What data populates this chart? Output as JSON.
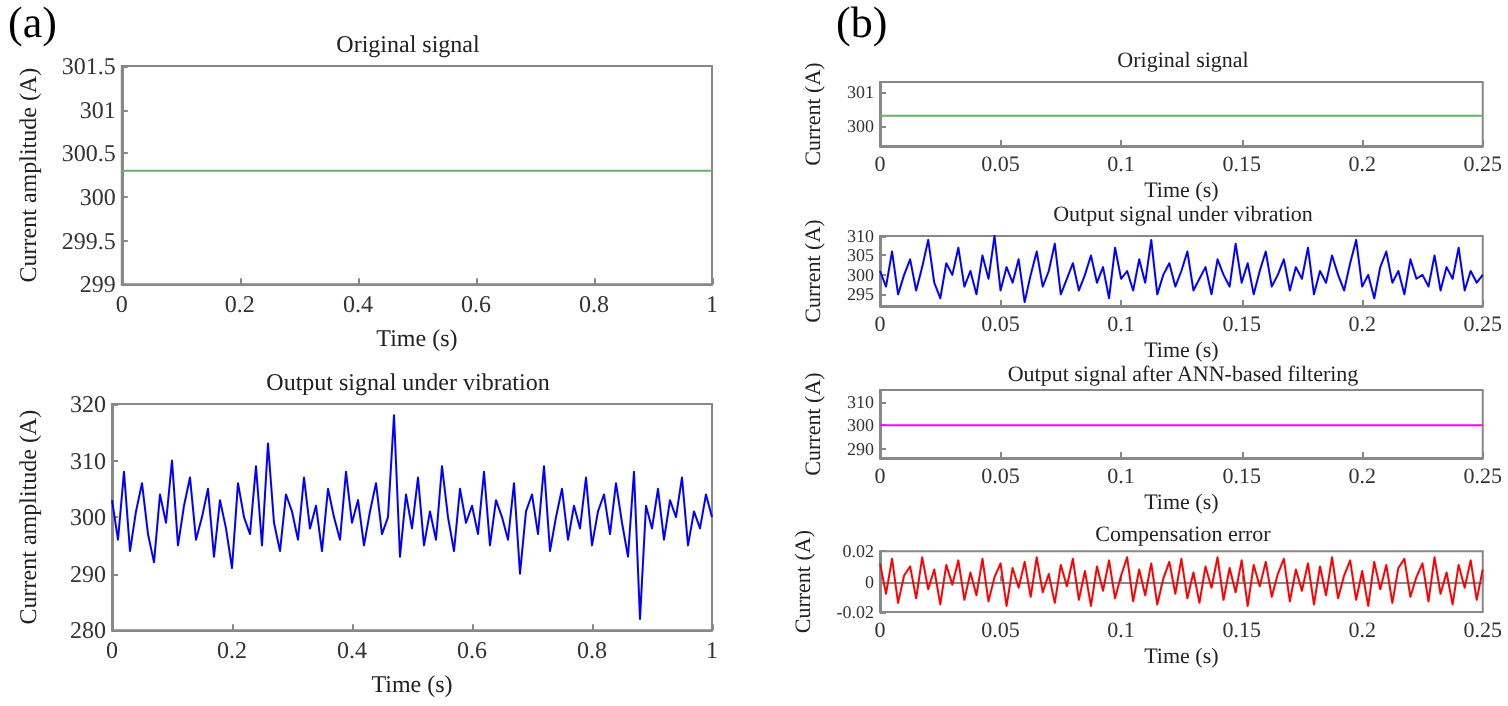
{
  "chart_data": [
    {
      "type": "line",
      "title": "Original signal",
      "xlabel": "Time (s)",
      "ylabel": "Current amplitude (A)",
      "annotations": [
        "(a)"
      ],
      "x": [
        0,
        1
      ],
      "values": [
        300.3,
        300.3
      ],
      "color": "#66b266",
      "xlim": [
        0,
        1
      ],
      "xticks": [
        0,
        0.2,
        0.4,
        0.6,
        0.8,
        1
      ],
      "ylim": [
        299,
        301.5
      ],
      "yticks": [
        299,
        299.5,
        300,
        300.5,
        301,
        301.5
      ]
    },
    {
      "type": "line",
      "title": "Output signal under vibration",
      "xlabel": "Time (s)",
      "ylabel": "Current amplitude (A)",
      "color": "#0000ff",
      "xlim": [
        0,
        1
      ],
      "xticks": [
        0,
        0.2,
        0.4,
        0.6,
        0.8,
        1
      ],
      "ylim": [
        280,
        320
      ],
      "yticks": [
        280,
        290,
        300,
        310,
        320
      ],
      "x": [
        0,
        0.01,
        0.02,
        0.03,
        0.04,
        0.05,
        0.06,
        0.07,
        0.08,
        0.09,
        0.1,
        0.11,
        0.12,
        0.13,
        0.14,
        0.15,
        0.16,
        0.17,
        0.18,
        0.19,
        0.2,
        0.21,
        0.22,
        0.23,
        0.24,
        0.25,
        0.26,
        0.27,
        0.28,
        0.29,
        0.3,
        0.31,
        0.32,
        0.33,
        0.34,
        0.35,
        0.36,
        0.37,
        0.38,
        0.39,
        0.4,
        0.41,
        0.42,
        0.43,
        0.44,
        0.45,
        0.46,
        0.47,
        0.48,
        0.49,
        0.5,
        0.51,
        0.52,
        0.53,
        0.54,
        0.55,
        0.56,
        0.57,
        0.58,
        0.59,
        0.6,
        0.61,
        0.62,
        0.63,
        0.64,
        0.65,
        0.66,
        0.67,
        0.68,
        0.69,
        0.7,
        0.71,
        0.72,
        0.73,
        0.74,
        0.75,
        0.76,
        0.77,
        0.78,
        0.79,
        0.8,
        0.81,
        0.82,
        0.83,
        0.84,
        0.85,
        0.86,
        0.87,
        0.88,
        0.89,
        0.9,
        0.91,
        0.92,
        0.93,
        0.94,
        0.95,
        0.96,
        0.97,
        0.98,
        0.99,
        1
      ],
      "values": [
        303,
        296,
        308,
        294,
        301,
        306,
        297,
        292,
        304,
        299,
        310,
        295,
        302,
        307,
        296,
        300,
        305,
        293,
        303,
        298,
        291,
        306,
        300,
        297,
        309,
        295,
        313,
        299,
        294,
        304,
        301,
        296,
        307,
        298,
        302,
        294,
        305,
        300,
        296,
        308,
        299,
        303,
        295,
        301,
        306,
        297,
        300,
        318,
        293,
        304,
        298,
        307,
        295,
        301,
        296,
        309,
        300,
        294,
        305,
        299,
        302,
        297,
        308,
        295,
        303,
        300,
        296,
        306,
        290,
        301,
        304,
        297,
        309,
        294,
        300,
        305,
        296,
        302,
        298,
        307,
        295,
        301,
        304,
        297,
        306,
        299,
        293,
        308,
        282,
        302,
        298,
        305,
        296,
        303,
        300,
        307,
        295,
        301,
        298,
        304,
        300
      ]
    },
    {
      "type": "line",
      "title": "Original signal",
      "xlabel": "Time (s)",
      "ylabel": "Current (A)",
      "annotations": [
        "(b)"
      ],
      "x": [
        0,
        0.25
      ],
      "values": [
        300.3,
        300.3
      ],
      "color": "#66b266",
      "xlim": [
        0,
        0.25
      ],
      "xticks": [
        0,
        0.05,
        0.1,
        0.15,
        0.2,
        0.25
      ],
      "ylim": [
        299.4,
        301.3
      ],
      "yticks": [
        300,
        301
      ]
    },
    {
      "type": "line",
      "title": "Output signal under vibration",
      "xlabel": "Time (s)",
      "ylabel": "Current (A)",
      "color": "#0000ff",
      "xlim": [
        0,
        0.25
      ],
      "xticks": [
        0,
        0.05,
        0.1,
        0.15,
        0.2,
        0.25
      ],
      "ylim": [
        292,
        310
      ],
      "yticks": [
        295,
        300,
        305,
        310
      ],
      "x": [
        0,
        0.0025,
        0.005,
        0.0075,
        0.01,
        0.0125,
        0.015,
        0.0175,
        0.02,
        0.0225,
        0.025,
        0.0275,
        0.03,
        0.0325,
        0.035,
        0.0375,
        0.04,
        0.0425,
        0.045,
        0.0475,
        0.05,
        0.0525,
        0.055,
        0.0575,
        0.06,
        0.0625,
        0.065,
        0.0675,
        0.07,
        0.0725,
        0.075,
        0.0775,
        0.08,
        0.0825,
        0.085,
        0.0875,
        0.09,
        0.0925,
        0.095,
        0.0975,
        0.1,
        0.1025,
        0.105,
        0.1075,
        0.11,
        0.1125,
        0.115,
        0.1175,
        0.12,
        0.1225,
        0.125,
        0.1275,
        0.13,
        0.1325,
        0.135,
        0.1375,
        0.14,
        0.1425,
        0.145,
        0.1475,
        0.15,
        0.1525,
        0.155,
        0.1575,
        0.16,
        0.1625,
        0.165,
        0.1675,
        0.17,
        0.1725,
        0.175,
        0.1775,
        0.18,
        0.1825,
        0.185,
        0.1875,
        0.19,
        0.1925,
        0.195,
        0.1975,
        0.2,
        0.2025,
        0.205,
        0.2075,
        0.21,
        0.2125,
        0.215,
        0.2175,
        0.22,
        0.2225,
        0.225,
        0.2275,
        0.23,
        0.2325,
        0.235,
        0.2375,
        0.24,
        0.2425,
        0.245,
        0.2475,
        0.25
      ],
      "values": [
        301,
        297,
        306,
        295,
        300,
        304,
        296,
        302,
        309,
        298,
        294,
        303,
        300,
        307,
        297,
        301,
        295,
        305,
        299,
        310,
        296,
        302,
        298,
        304,
        293,
        300,
        306,
        297,
        301,
        308,
        295,
        299,
        303,
        296,
        300,
        305,
        298,
        302,
        294,
        307,
        299,
        301,
        296,
        304,
        298,
        309,
        295,
        300,
        303,
        297,
        301,
        306,
        296,
        299,
        302,
        295,
        304,
        300,
        297,
        308,
        298,
        303,
        295,
        301,
        306,
        297,
        300,
        304,
        296,
        302,
        299,
        307,
        295,
        301,
        298,
        305,
        300,
        296,
        303,
        309,
        297,
        300,
        294,
        302,
        306,
        298,
        301,
        295,
        304,
        299,
        300,
        297,
        305,
        296,
        302,
        299,
        307,
        296,
        301,
        298,
        300
      ]
    },
    {
      "type": "line",
      "title": "Output signal after ANN-based filtering",
      "xlabel": "Time (s)",
      "ylabel": "Current (A)",
      "x": [
        0,
        0.25
      ],
      "values": [
        300,
        300
      ],
      "color": "#ff00ff",
      "xlim": [
        0,
        0.25
      ],
      "xticks": [
        0,
        0.05,
        0.1,
        0.15,
        0.2,
        0.25
      ],
      "ylim": [
        286,
        315
      ],
      "yticks": [
        290,
        300,
        310
      ]
    },
    {
      "type": "line",
      "title": "Compensation error",
      "xlabel": "Time (s)",
      "ylabel": "Current (A)",
      "color": "#ff0000",
      "xlim": [
        0,
        0.25
      ],
      "xticks": [
        0,
        0.05,
        0.1,
        0.15,
        0.2,
        0.25
      ],
      "ylim": [
        -0.02,
        0.02
      ],
      "yticks": [
        -0.02,
        0,
        0.02
      ],
      "x": [
        0,
        0.0025,
        0.005,
        0.0075,
        0.01,
        0.0125,
        0.015,
        0.0175,
        0.02,
        0.0225,
        0.025,
        0.0275,
        0.03,
        0.0325,
        0.035,
        0.0375,
        0.04,
        0.0425,
        0.045,
        0.0475,
        0.05,
        0.0525,
        0.055,
        0.0575,
        0.06,
        0.0625,
        0.065,
        0.0675,
        0.07,
        0.0725,
        0.075,
        0.0775,
        0.08,
        0.0825,
        0.085,
        0.0875,
        0.09,
        0.0925,
        0.095,
        0.0975,
        0.1,
        0.1025,
        0.105,
        0.1075,
        0.11,
        0.1125,
        0.115,
        0.1175,
        0.12,
        0.1225,
        0.125,
        0.1275,
        0.13,
        0.1325,
        0.135,
        0.1375,
        0.14,
        0.1425,
        0.145,
        0.1475,
        0.15,
        0.1525,
        0.155,
        0.1575,
        0.16,
        0.1625,
        0.165,
        0.1675,
        0.17,
        0.1725,
        0.175,
        0.1775,
        0.18,
        0.1825,
        0.185,
        0.1875,
        0.19,
        0.1925,
        0.195,
        0.1975,
        0.2,
        0.2025,
        0.205,
        0.2075,
        0.21,
        0.2125,
        0.215,
        0.2175,
        0.22,
        0.2225,
        0.225,
        0.2275,
        0.23,
        0.2325,
        0.235,
        0.2375,
        0.24,
        0.2425,
        0.245,
        0.2475,
        0.25
      ],
      "values": [
        0.012,
        -0.008,
        0.015,
        -0.014,
        0.004,
        0.01,
        -0.011,
        0.016,
        -0.005,
        0.008,
        -0.015,
        0.011,
        -0.002,
        0.014,
        -0.012,
        0.006,
        -0.009,
        0.015,
        -0.013,
        0.003,
        0.012,
        -0.016,
        0.009,
        -0.004,
        0.013,
        -0.01,
        0.016,
        -0.007,
        0.005,
        -0.014,
        0.011,
        -0.003,
        0.015,
        -0.012,
        0.007,
        -0.016,
        0.01,
        -0.006,
        0.014,
        -0.011,
        0.004,
        0.016,
        -0.013,
        0.008,
        -0.009,
        0.012,
        -0.015,
        0.002,
        0.013,
        -0.008,
        0.015,
        -0.011,
        0.006,
        -0.014,
        0.01,
        -0.004,
        0.016,
        -0.012,
        0.009,
        -0.007,
        0.014,
        -0.016,
        0.011,
        -0.003,
        0.013,
        -0.01,
        0.005,
        0.015,
        -0.013,
        0.008,
        -0.006,
        0.012,
        -0.015,
        0.01,
        -0.009,
        0.016,
        -0.011,
        0.004,
        0.014,
        -0.012,
        0.007,
        -0.016,
        0.013,
        -0.005,
        0.011,
        -0.014,
        0.009,
        0.015,
        -0.01,
        0.003,
        0.012,
        -0.013,
        0.016,
        -0.008,
        0.006,
        -0.015,
        0.011,
        -0.004,
        0.014,
        -0.012,
        0.008
      ]
    }
  ]
}
